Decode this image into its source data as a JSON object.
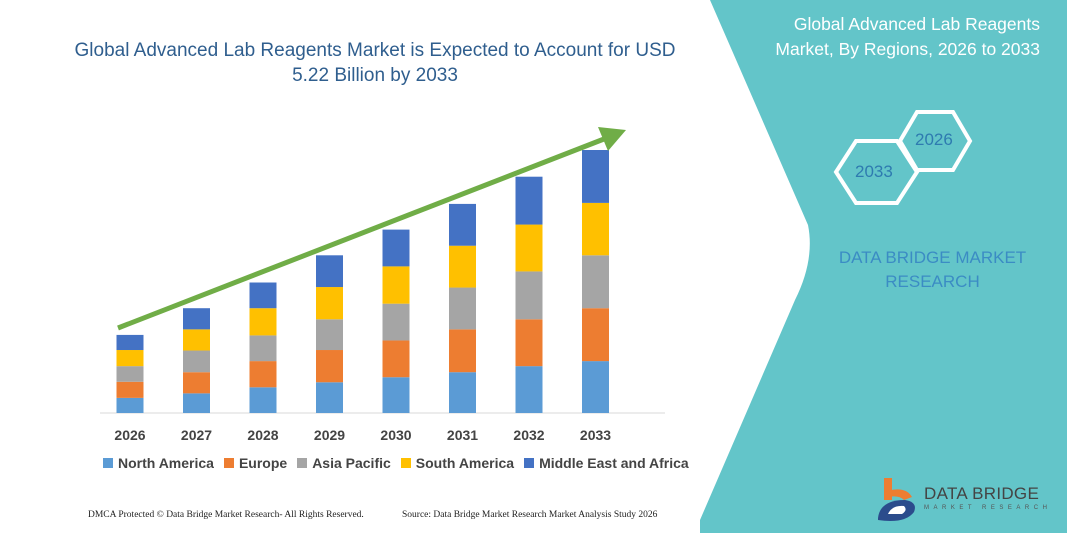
{
  "chart_data": {
    "type": "bar",
    "stacked": true,
    "title": "Global Advanced Lab Reagents Market is Expected to Account for USD 5.22 Billion by 2033",
    "categories": [
      "2026",
      "2027",
      "2028",
      "2029",
      "2030",
      "2031",
      "2032",
      "2033"
    ],
    "series": [
      {
        "name": "North America",
        "color": "#5b9bd5",
        "values": [
          0.3,
          0.39,
          0.51,
          0.61,
          0.71,
          0.81,
          0.93,
          1.03
        ]
      },
      {
        "name": "Europe",
        "color": "#ed7d31",
        "values": [
          0.32,
          0.42,
          0.52,
          0.64,
          0.73,
          0.85,
          0.93,
          1.05
        ]
      },
      {
        "name": "Asia Pacific",
        "color": "#a5a5a5",
        "values": [
          0.31,
          0.43,
          0.51,
          0.61,
          0.73,
          0.83,
          0.95,
          1.05
        ]
      },
      {
        "name": "South America",
        "color": "#ffc000",
        "values": [
          0.32,
          0.42,
          0.54,
          0.64,
          0.74,
          0.83,
          0.93,
          1.04
        ]
      },
      {
        "name": "Middle East and Africa",
        "color": "#4472c4",
        "values": [
          0.3,
          0.42,
          0.51,
          0.63,
          0.73,
          0.83,
          0.95,
          1.05
        ]
      }
    ],
    "ylim": [
      0,
      5.5
    ],
    "y_axis_shown": false,
    "grid": false,
    "legend_position": "bottom",
    "trend_arrow_color": "#70ad47"
  },
  "side_panel": {
    "title": "Global Advanced Lab Reagents Market, By Regions, 2026 to 2033",
    "hex_start": "2026",
    "hex_end": "2033",
    "brand": "DATA BRIDGE MARKET RESEARCH",
    "color": "#63c5c9"
  },
  "logo": {
    "name": "DATA BRIDGE",
    "sub": "MARKET RESEARCH"
  },
  "footer": {
    "left": "DMCA Protected © Data Bridge Market Research- All Rights Reserved.",
    "right": "Source: Data Bridge Market Research Market Analysis Study 2026"
  }
}
